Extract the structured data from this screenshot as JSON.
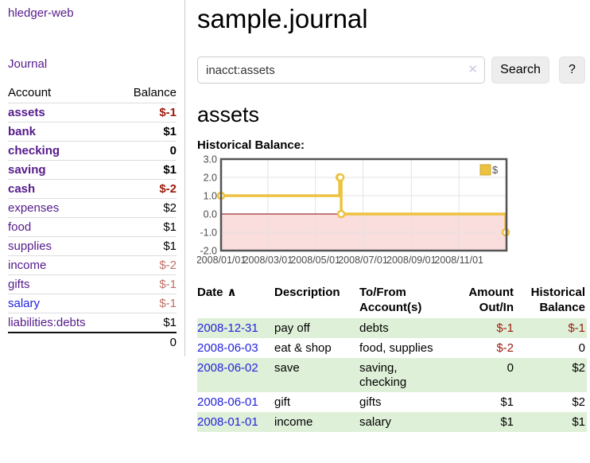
{
  "app": {
    "title": "hledger-web"
  },
  "colors": {
    "link_purple": "#551a8b",
    "link_blue": "#2323dc",
    "negative_strong": "#9c1a0c",
    "negative_muted": "#bf7065",
    "row_stripe_green": "#dff0d8",
    "chart_line": "#edc240",
    "chart_negative_fill": "#fadddd",
    "chart_zero_line": "#8b0000"
  },
  "sidebar": {
    "journal_link": "Journal",
    "accounts_table": {
      "account_header": "Account",
      "balance_header": "Balance",
      "rows": [
        {
          "name": "assets",
          "depth": 1,
          "bold": true,
          "balance": "$-1",
          "balance_color": "negative"
        },
        {
          "name": "bank",
          "depth": 2,
          "bold": true,
          "balance": "$1",
          "balance_color": "normal"
        },
        {
          "name": "checking",
          "depth": 3,
          "bold": true,
          "balance": "0",
          "balance_color": "normal"
        },
        {
          "name": "saving",
          "depth": 3,
          "bold": true,
          "balance": "$1",
          "balance_color": "normal"
        },
        {
          "name": "cash",
          "depth": 2,
          "bold": true,
          "balance": "$-2",
          "balance_color": "negative"
        },
        {
          "name": "expenses",
          "depth": 1,
          "bold": false,
          "balance": "$2",
          "balance_color": "normal"
        },
        {
          "name": "food",
          "depth": 2,
          "bold": false,
          "balance": "$1",
          "balance_color": "normal"
        },
        {
          "name": "supplies",
          "depth": 2,
          "bold": false,
          "balance": "$1",
          "balance_color": "normal"
        },
        {
          "name": "income",
          "depth": 1,
          "bold": false,
          "balance": "$-2",
          "balance_color": "negative-muted"
        },
        {
          "name": "gifts",
          "depth": 2,
          "bold": false,
          "balance": "$-1",
          "balance_color": "negative-muted"
        },
        {
          "name": "salary",
          "depth": 2,
          "bold": false,
          "balance": "$-1",
          "balance_color": "negative-muted",
          "link_color": "blue"
        },
        {
          "name": "liabilities:debts",
          "depth": 1,
          "bold": false,
          "balance": "$1",
          "balance_color": "normal"
        }
      ],
      "total": "0"
    }
  },
  "main": {
    "title": "sample.journal",
    "search": {
      "value": "inacct:assets",
      "clear_icon": "✕",
      "button_label": "Search",
      "help_label": "?"
    },
    "account_heading": "assets",
    "chart_label": "Historical Balance:",
    "register": {
      "headers": {
        "date": "Date",
        "sort_icon": "∧",
        "description": "Description",
        "accounts": "To/From Account(s)",
        "amount": "Amount Out/In",
        "balance": "Historical Balance"
      },
      "rows": [
        {
          "date": "2008-12-31",
          "description": "pay off",
          "accounts": "debts",
          "amount": "$-1",
          "amount_color": "negative",
          "balance": "$-1",
          "balance_color": "negative"
        },
        {
          "date": "2008-06-03",
          "description": "eat & shop",
          "accounts": "food, supplies",
          "amount": "$-2",
          "amount_color": "negative",
          "balance": "0",
          "balance_color": "normal"
        },
        {
          "date": "2008-06-02",
          "description": "save",
          "accounts": "saving, checking",
          "amount": "0",
          "amount_color": "normal",
          "balance": "$2",
          "balance_color": "normal"
        },
        {
          "date": "2008-06-01",
          "description": "gift",
          "accounts": "gifts",
          "amount": "$1",
          "amount_color": "normal",
          "balance": "$2",
          "balance_color": "normal"
        },
        {
          "date": "2008-01-01",
          "description": "income",
          "accounts": "salary",
          "amount": "$1",
          "amount_color": "normal",
          "balance": "$1",
          "balance_color": "normal"
        }
      ]
    }
  },
  "chart_data": {
    "type": "line",
    "title": "Historical Balance",
    "step": true,
    "x_start": "2008-01-01",
    "x_end": "2009-01-01",
    "ylim": [
      -2,
      3
    ],
    "yticks": [
      3,
      2,
      1,
      0,
      -1,
      -2
    ],
    "xticks": [
      "2008/01/01",
      "2008/03/01",
      "2008/05/01",
      "2008/07/01",
      "2008/09/01",
      "2008/11/01"
    ],
    "series": [
      {
        "name": "$",
        "color": "#edc240",
        "points": [
          [
            "2008-01-01",
            1
          ],
          [
            "2008-06-01",
            2
          ],
          [
            "2008-06-02",
            2
          ],
          [
            "2008-06-03",
            0
          ],
          [
            "2008-12-31",
            -1
          ]
        ]
      }
    ],
    "grid": true,
    "legend_position": "top-right",
    "negative_region_fill": "#fadddd",
    "zero_line_color": "#8b0000"
  }
}
